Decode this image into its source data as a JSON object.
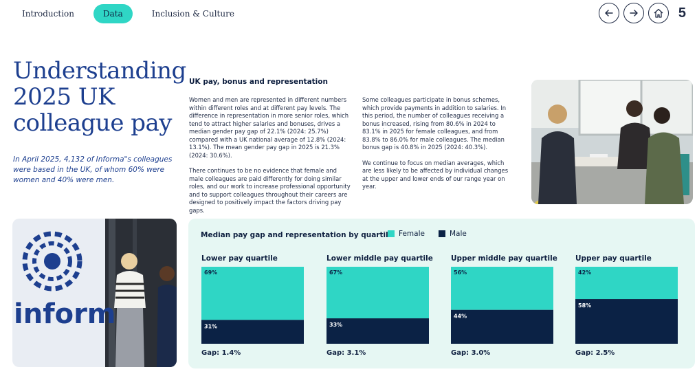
{
  "nav": {
    "items": [
      {
        "label": "Introduction",
        "active": false
      },
      {
        "label": "Data",
        "active": true
      },
      {
        "label": "Inclusion & Culture",
        "active": false
      }
    ],
    "page_number": "5",
    "icons": [
      "arrow-left-icon",
      "arrow-right-icon",
      "home-icon"
    ]
  },
  "heading": {
    "title_lines": [
      "Understanding",
      "2025 UK",
      "colleague pay"
    ],
    "intro": "In April 2025, 4,132 of Informa\"s colleagues were based in the UK, of whom 60% were women and 40% were men."
  },
  "section": {
    "title": "UK pay, bonus and representation",
    "col1": [
      "Women and men are represented in different numbers within different roles and at different pay levels. The difference in representation in more senior roles, which tend to attract higher salaries and bonuses, drives a median gender pay gap of 22.1% (2024: 25.7%) compared with a UK national average of 12.8% (2024: 13.1%). The mean gender pay gap in 2025 is 21.3% (2024: 30.6%).",
      "There continues to be no evidence that female and male colleagues are paid differently for doing similar roles, and our work to increase professional opportunity and to support colleagues throughout their careers are designed to positively impact the factors driving pay gaps."
    ],
    "col2": [
      "Some colleagues participate in bonus schemes, which provide payments in addition to salaries. In this period, the number of colleagues receiving a bonus increased, rising from 80.6% in 2024 to 83.1% in 2025 for female colleagues, and from 83.8% to 86.0% for male colleagues. The median bonus gap is 40.8% in 2025 (2024: 40.3%).",
      "We continue to focus on median averages, which are less likely to be affected by individual changes at the upper and lower ends of our range year on year."
    ]
  },
  "brand": {
    "logo_text": "informa"
  },
  "colors": {
    "female": "#2fd6c5",
    "male": "#0b2245",
    "accent": "#1d3f8f",
    "card_bg": "#e6f7f3"
  },
  "chart_data": {
    "type": "bar",
    "title": "Median pay gap and representation by quartile",
    "legend": [
      "Female",
      "Male"
    ],
    "legend_position": "top",
    "categories": [
      "Lower pay quartile",
      "Lower middle pay quartile",
      "Upper middle pay quartile",
      "Upper pay quartile"
    ],
    "series": [
      {
        "name": "Female",
        "values": [
          69,
          67,
          56,
          42
        ]
      },
      {
        "name": "Male",
        "values": [
          31,
          33,
          44,
          58
        ]
      }
    ],
    "gaps": [
      "Gap: 1.4%",
      "Gap: 3.1%",
      "Gap: 3.0%",
      "Gap: 2.5%"
    ],
    "value_labels": {
      "female": [
        "69%",
        "67%",
        "56%",
        "42%"
      ],
      "male": [
        "31%",
        "33%",
        "44%",
        "58%"
      ]
    },
    "ylim": [
      0,
      100
    ]
  }
}
